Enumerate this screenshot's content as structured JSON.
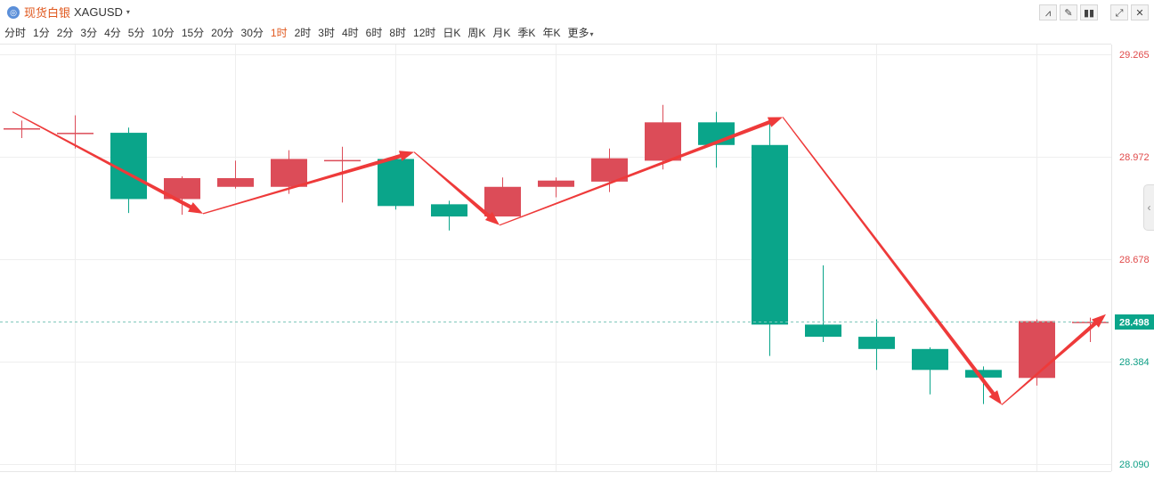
{
  "header": {
    "symbol_icon": "silver-coin-icon",
    "symbol_name": "现货白银",
    "symbol_code": "XAGUSD",
    "caret": "▾",
    "tools": [
      {
        "name": "indicator-tool-icon",
        "glyph": "⩘"
      },
      {
        "name": "draw-tool-icon",
        "glyph": "✎"
      },
      {
        "name": "candle-type-icon",
        "glyph": "▮▮"
      },
      {
        "name": "fullscreen-icon",
        "glyph": "⤢"
      },
      {
        "name": "close-icon",
        "glyph": "✕"
      }
    ]
  },
  "periods": [
    "分时",
    "1分",
    "2分",
    "3分",
    "4分",
    "5分",
    "10分",
    "15分",
    "20分",
    "30分",
    "1时",
    "2时",
    "3时",
    "4时",
    "6时",
    "8时",
    "12时",
    "日K",
    "周K",
    "月K",
    "季K",
    "年K",
    "更多"
  ],
  "active_period": "1时",
  "side_tab_glyph": "‹",
  "colors": {
    "up": "#dc4c58",
    "down": "#0aa58a",
    "arrow": "#ee3a3a",
    "grid": "#eeeeee",
    "text_up": "#e04a4a",
    "text_down": "#0f9f86"
  },
  "chart_data": {
    "type": "candlestick",
    "ylim": [
      28.09,
      29.265
    ],
    "y_ticks": [
      {
        "label": "29.265",
        "value": 29.265,
        "color": "up"
      },
      {
        "label": "28.972",
        "value": 28.972,
        "color": "up"
      },
      {
        "label": "28.678",
        "value": 28.678,
        "color": "up"
      },
      {
        "label": "28.384",
        "value": 28.384,
        "color": "down"
      },
      {
        "label": "28.090",
        "value": 28.09,
        "color": "down"
      }
    ],
    "current_price": {
      "label": "28.498",
      "value": 28.498
    },
    "candles": [
      {
        "open": 29.05,
        "close": 29.053,
        "high": 29.075,
        "low": 29.025
      },
      {
        "open": 29.038,
        "close": 29.04,
        "high": 29.09,
        "low": 28.995
      },
      {
        "open": 29.04,
        "close": 28.85,
        "high": 29.055,
        "low": 28.81
      },
      {
        "open": 28.85,
        "close": 28.91,
        "high": 28.915,
        "low": 28.805
      },
      {
        "open": 28.885,
        "close": 28.91,
        "high": 28.96,
        "low": 28.88
      },
      {
        "open": 28.885,
        "close": 28.965,
        "high": 28.99,
        "low": 28.865
      },
      {
        "open": 28.96,
        "close": 28.962,
        "high": 29.0,
        "low": 28.84
      },
      {
        "open": 28.965,
        "close": 28.83,
        "high": 28.975,
        "low": 28.82
      },
      {
        "open": 28.835,
        "close": 28.8,
        "high": 28.845,
        "low": 28.76
      },
      {
        "open": 28.8,
        "close": 28.885,
        "high": 28.912,
        "low": 28.8
      },
      {
        "open": 28.885,
        "close": 28.903,
        "high": 28.912,
        "low": 28.855
      },
      {
        "open": 28.9,
        "close": 28.967,
        "high": 28.995,
        "low": 28.87
      },
      {
        "open": 28.96,
        "close": 29.07,
        "high": 29.12,
        "low": 28.935
      },
      {
        "open": 29.07,
        "close": 29.005,
        "high": 29.1,
        "low": 28.94
      },
      {
        "open": 29.005,
        "close": 28.49,
        "high": 29.07,
        "low": 28.4
      },
      {
        "open": 28.49,
        "close": 28.455,
        "high": 28.66,
        "low": 28.44
      },
      {
        "open": 28.455,
        "close": 28.42,
        "high": 28.505,
        "low": 28.36
      },
      {
        "open": 28.42,
        "close": 28.36,
        "high": 28.425,
        "low": 28.29
      },
      {
        "open": 28.36,
        "close": 28.338,
        "high": 28.37,
        "low": 28.262
      },
      {
        "open": 28.337,
        "close": 28.5,
        "high": 28.505,
        "low": 28.315
      },
      {
        "open": 28.495,
        "close": 28.498,
        "high": 28.51,
        "low": 28.44
      }
    ],
    "arrows": [
      {
        "from": [
          0,
          29.1
        ],
        "to": [
          3.4,
          28.808
        ]
      },
      {
        "from": [
          3.4,
          28.808
        ],
        "to": [
          7.35,
          28.985
        ]
      },
      {
        "from": [
          7.35,
          28.985
        ],
        "to": [
          8.95,
          28.775
        ]
      },
      {
        "from": [
          8.95,
          28.775
        ],
        "to": [
          14.25,
          29.085
        ]
      },
      {
        "from": [
          14.25,
          29.085
        ],
        "to": [
          18.35,
          28.26
        ]
      },
      {
        "from": [
          18.35,
          28.26
        ],
        "to": [
          20.3,
          28.52
        ]
      }
    ]
  }
}
